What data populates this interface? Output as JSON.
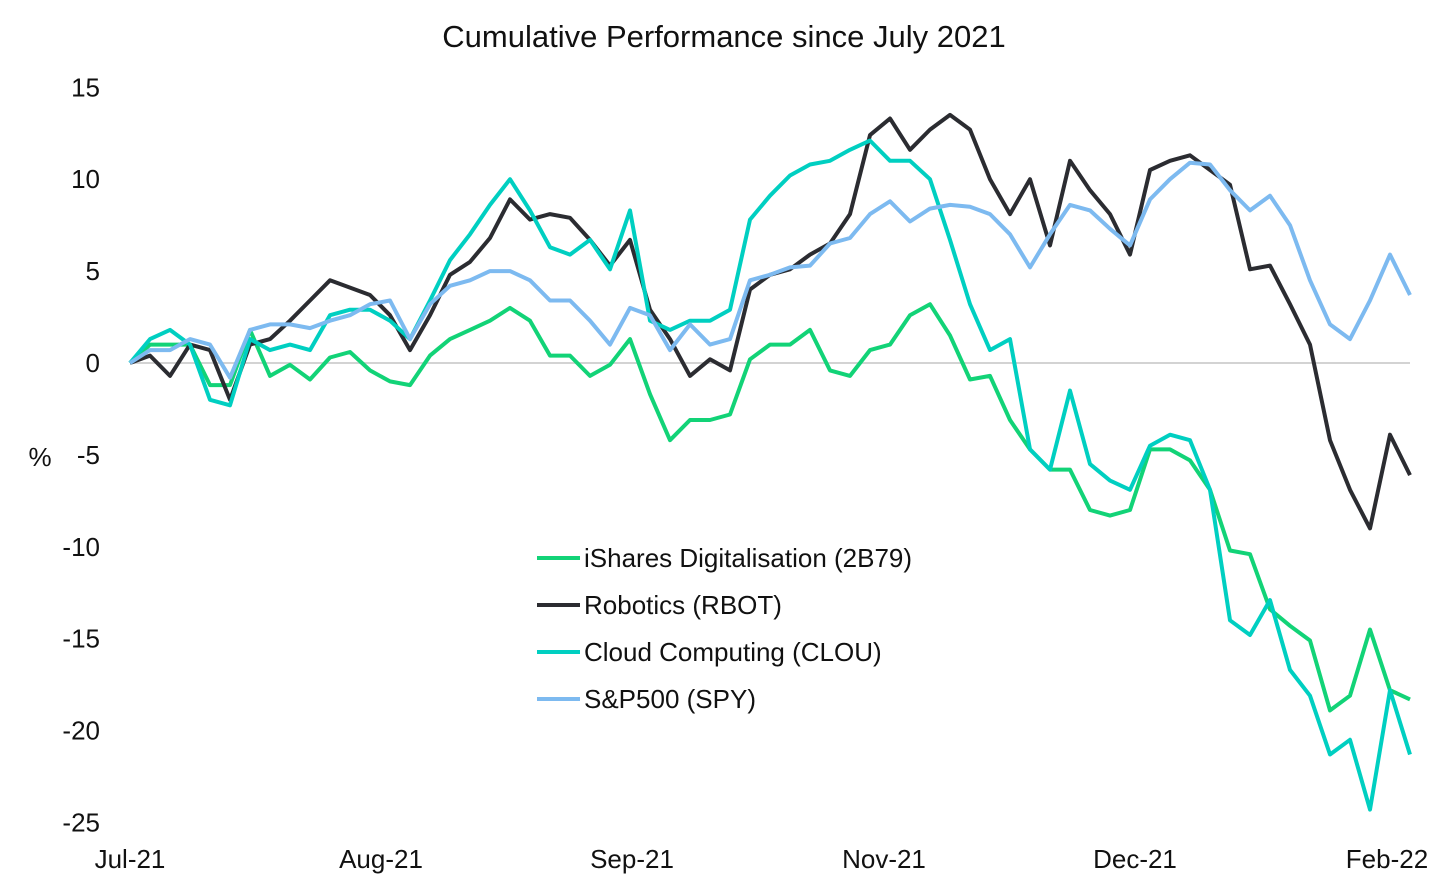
{
  "chart_data": {
    "type": "line",
    "title": "Cumulative Performance since July 2021",
    "ylabel": "%",
    "xlabel": "",
    "ylim": [
      -25,
      15
    ],
    "y_ticks": [
      15,
      10,
      5,
      0,
      -5,
      -10,
      -15,
      -20,
      -25
    ],
    "x_tick_labels": [
      "Jul-21",
      "Aug-21",
      "Sep-21",
      "Nov-21",
      "Dec-21",
      "Feb-22"
    ],
    "x_tick_index": [
      0,
      12.55,
      25.1,
      37.7,
      50.25,
      62.85
    ],
    "grid": false,
    "zero_line": true,
    "legend_placement": "bottom-center",
    "series": [
      {
        "name": "iShares Digitalisation (2B79)",
        "color": "#12d377",
        "values": [
          0,
          1.0,
          1.0,
          1.0,
          -1.2,
          -1.2,
          1.8,
          -0.7,
          -0.1,
          -0.9,
          0.3,
          0.6,
          -0.4,
          -1.0,
          -1.2,
          0.4,
          1.3,
          1.8,
          2.3,
          3.0,
          2.3,
          0.4,
          0.4,
          -0.7,
          -0.1,
          1.3,
          -1.7,
          -4.2,
          -3.1,
          -3.1,
          -2.8,
          0.2,
          1.0,
          1.0,
          1.8,
          -0.4,
          -0.7,
          0.7,
          1.0,
          2.6,
          3.2,
          1.5,
          -0.9,
          -0.7,
          -3.1,
          -4.7,
          -5.8,
          -5.8,
          -8.0,
          -8.3,
          -8.0,
          -4.7,
          -4.7,
          -5.3,
          -6.9,
          -10.2,
          -10.4,
          -13.4,
          -14.3,
          -15.1,
          -18.9,
          -18.1,
          -14.5,
          -17.8,
          -18.3
        ]
      },
      {
        "name": "Robotics (RBOT)",
        "color": "#2b2c31",
        "values": [
          0,
          0.4,
          -0.7,
          1.0,
          0.7,
          -2.0,
          1.0,
          1.3,
          2.3,
          3.4,
          4.5,
          4.1,
          3.7,
          2.6,
          0.7,
          2.6,
          4.8,
          5.5,
          6.8,
          8.9,
          7.8,
          8.1,
          7.9,
          6.7,
          5.3,
          6.7,
          2.9,
          1.3,
          -0.7,
          0.2,
          -0.4,
          4.0,
          4.8,
          5.1,
          5.9,
          6.5,
          8.1,
          12.4,
          13.3,
          11.6,
          12.7,
          13.5,
          12.7,
          10.0,
          8.1,
          10.0,
          6.4,
          11.0,
          9.4,
          8.1,
          5.9,
          10.5,
          11.0,
          11.3,
          10.5,
          9.7,
          5.1,
          5.3,
          3.2,
          1.0,
          -4.2,
          -6.9,
          -9.0,
          -3.9,
          -6.1
        ]
      },
      {
        "name": "Cloud Computing (CLOU)",
        "color": "#00cfc1",
        "values": [
          0,
          1.3,
          1.8,
          1.0,
          -2.0,
          -2.3,
          1.3,
          0.7,
          1.0,
          0.7,
          2.6,
          2.9,
          2.9,
          2.3,
          1.3,
          3.4,
          5.6,
          7.0,
          8.6,
          10.0,
          8.3,
          6.3,
          5.9,
          6.7,
          5.1,
          8.3,
          2.3,
          1.8,
          2.3,
          2.3,
          2.9,
          7.8,
          9.1,
          10.2,
          10.8,
          11.0,
          11.6,
          12.1,
          11.0,
          11.0,
          10.0,
          6.7,
          3.2,
          0.7,
          1.3,
          -4.7,
          -5.8,
          -1.5,
          -5.5,
          -6.4,
          -6.9,
          -4.5,
          -3.9,
          -4.2,
          -6.9,
          -14.0,
          -14.8,
          -12.9,
          -16.7,
          -18.1,
          -21.3,
          -20.5,
          -24.3,
          -17.8,
          -21.3
        ]
      },
      {
        "name": "S&P500 (SPY)",
        "color": "#7dbaf0",
        "values": [
          0,
          0.7,
          0.7,
          1.3,
          1.0,
          -0.8,
          1.8,
          2.1,
          2.1,
          1.9,
          2.3,
          2.6,
          3.2,
          3.4,
          1.3,
          3.2,
          4.2,
          4.5,
          5.0,
          5.0,
          4.5,
          3.4,
          3.4,
          2.3,
          1.0,
          3.0,
          2.6,
          0.7,
          2.1,
          1.0,
          1.3,
          4.5,
          4.8,
          5.2,
          5.3,
          6.5,
          6.8,
          8.1,
          8.8,
          7.7,
          8.4,
          8.6,
          8.5,
          8.1,
          7.0,
          5.2,
          7.0,
          8.6,
          8.3,
          7.3,
          6.4,
          8.9,
          10.0,
          10.9,
          10.8,
          9.4,
          8.3,
          9.1,
          7.5,
          4.5,
          2.1,
          1.3,
          3.4,
          5.9,
          3.7
        ]
      }
    ]
  }
}
